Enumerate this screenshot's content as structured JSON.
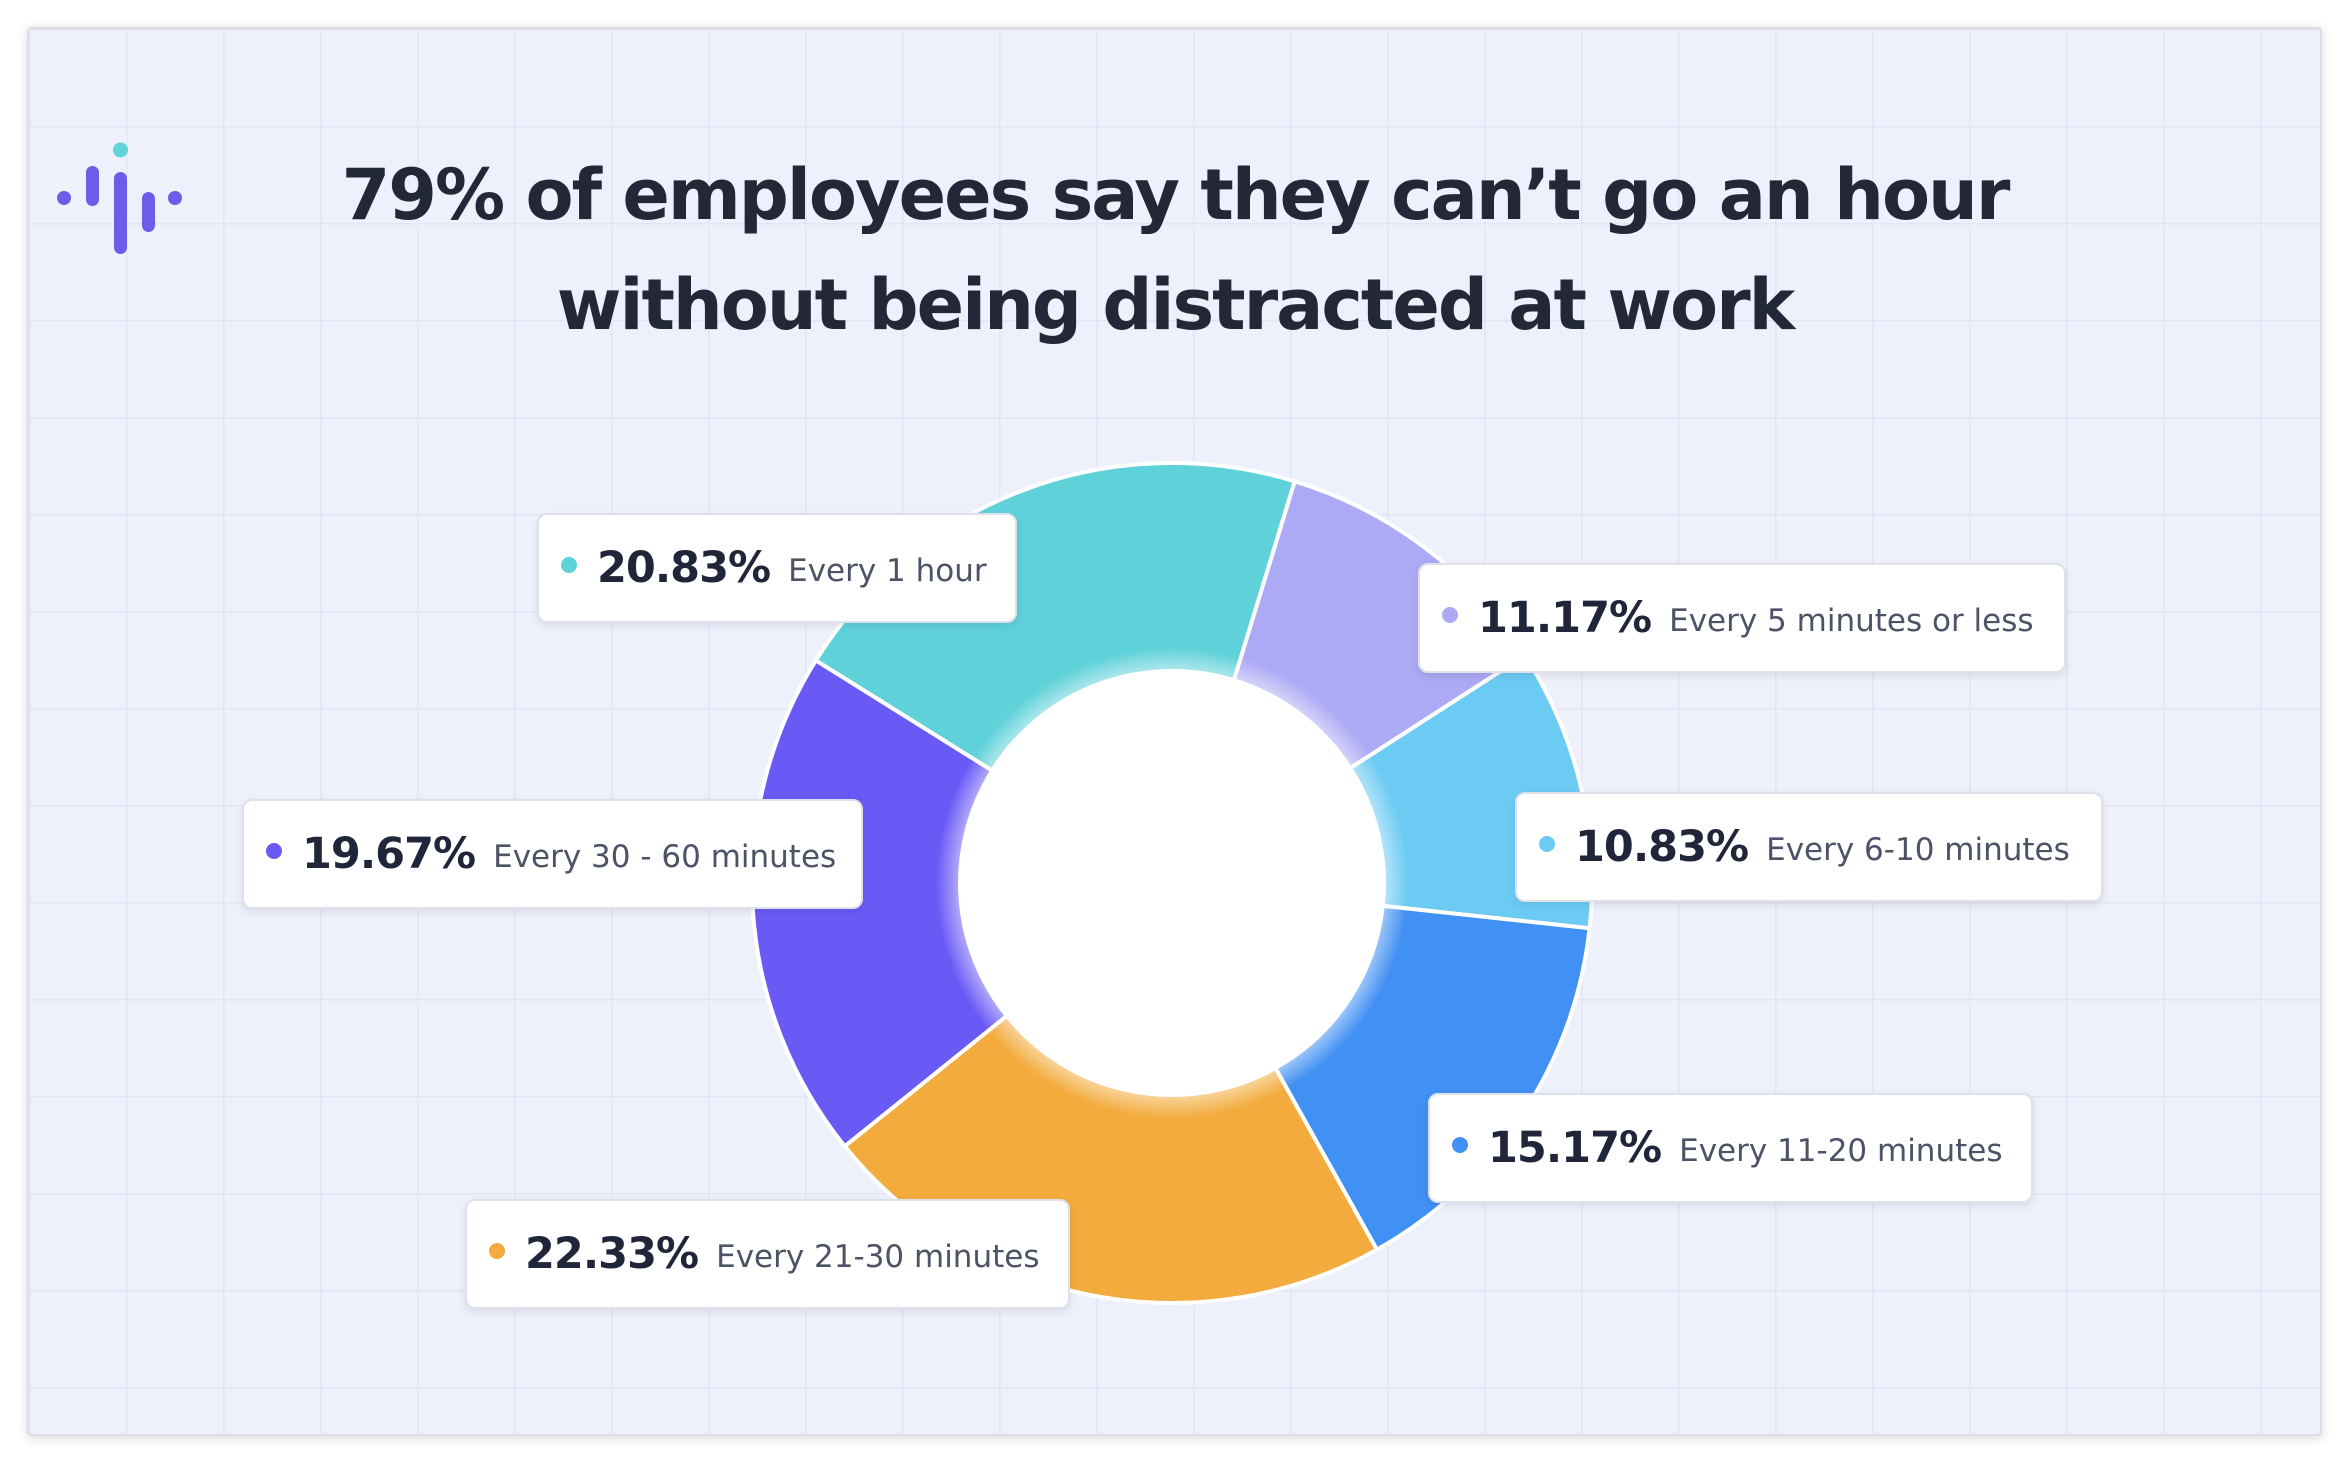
{
  "header": {
    "title_line1": "79% of employees say they can’t go an hour",
    "title_line2": "without being distracted at work"
  },
  "logo": {
    "icon": "audio-bars-icon",
    "colors": [
      "#6c5ce7",
      "#5fd3d6"
    ]
  },
  "chart_data": {
    "type": "pie",
    "variant": "donut",
    "title": "79% of employees say they can’t go an hour without being distracted at work",
    "slices": [
      {
        "label": "Every 1 hour",
        "value": 20.83,
        "value_label": "20.83%",
        "color": "#5ed1d9"
      },
      {
        "label": "Every 5 minutes or less",
        "value": 11.17,
        "value_label": "11.17%",
        "color": "#adaaf5"
      },
      {
        "label": "Every 6-10 minutes",
        "value": 10.83,
        "value_label": "10.83%",
        "color": "#6ccbf3"
      },
      {
        "label": "Every 11-20 minutes",
        "value": 15.17,
        "value_label": "15.17%",
        "color": "#4190f3"
      },
      {
        "label": "Every 21-30 minutes",
        "value": 22.33,
        "value_label": "22.33%",
        "color": "#f2ab3c"
      },
      {
        "label": "Every 30 - 60 minutes",
        "value": 19.67,
        "value_label": "19.67%",
        "color": "#6a5af5"
      }
    ],
    "legend": "callout labels beside each slice",
    "grid": false
  }
}
